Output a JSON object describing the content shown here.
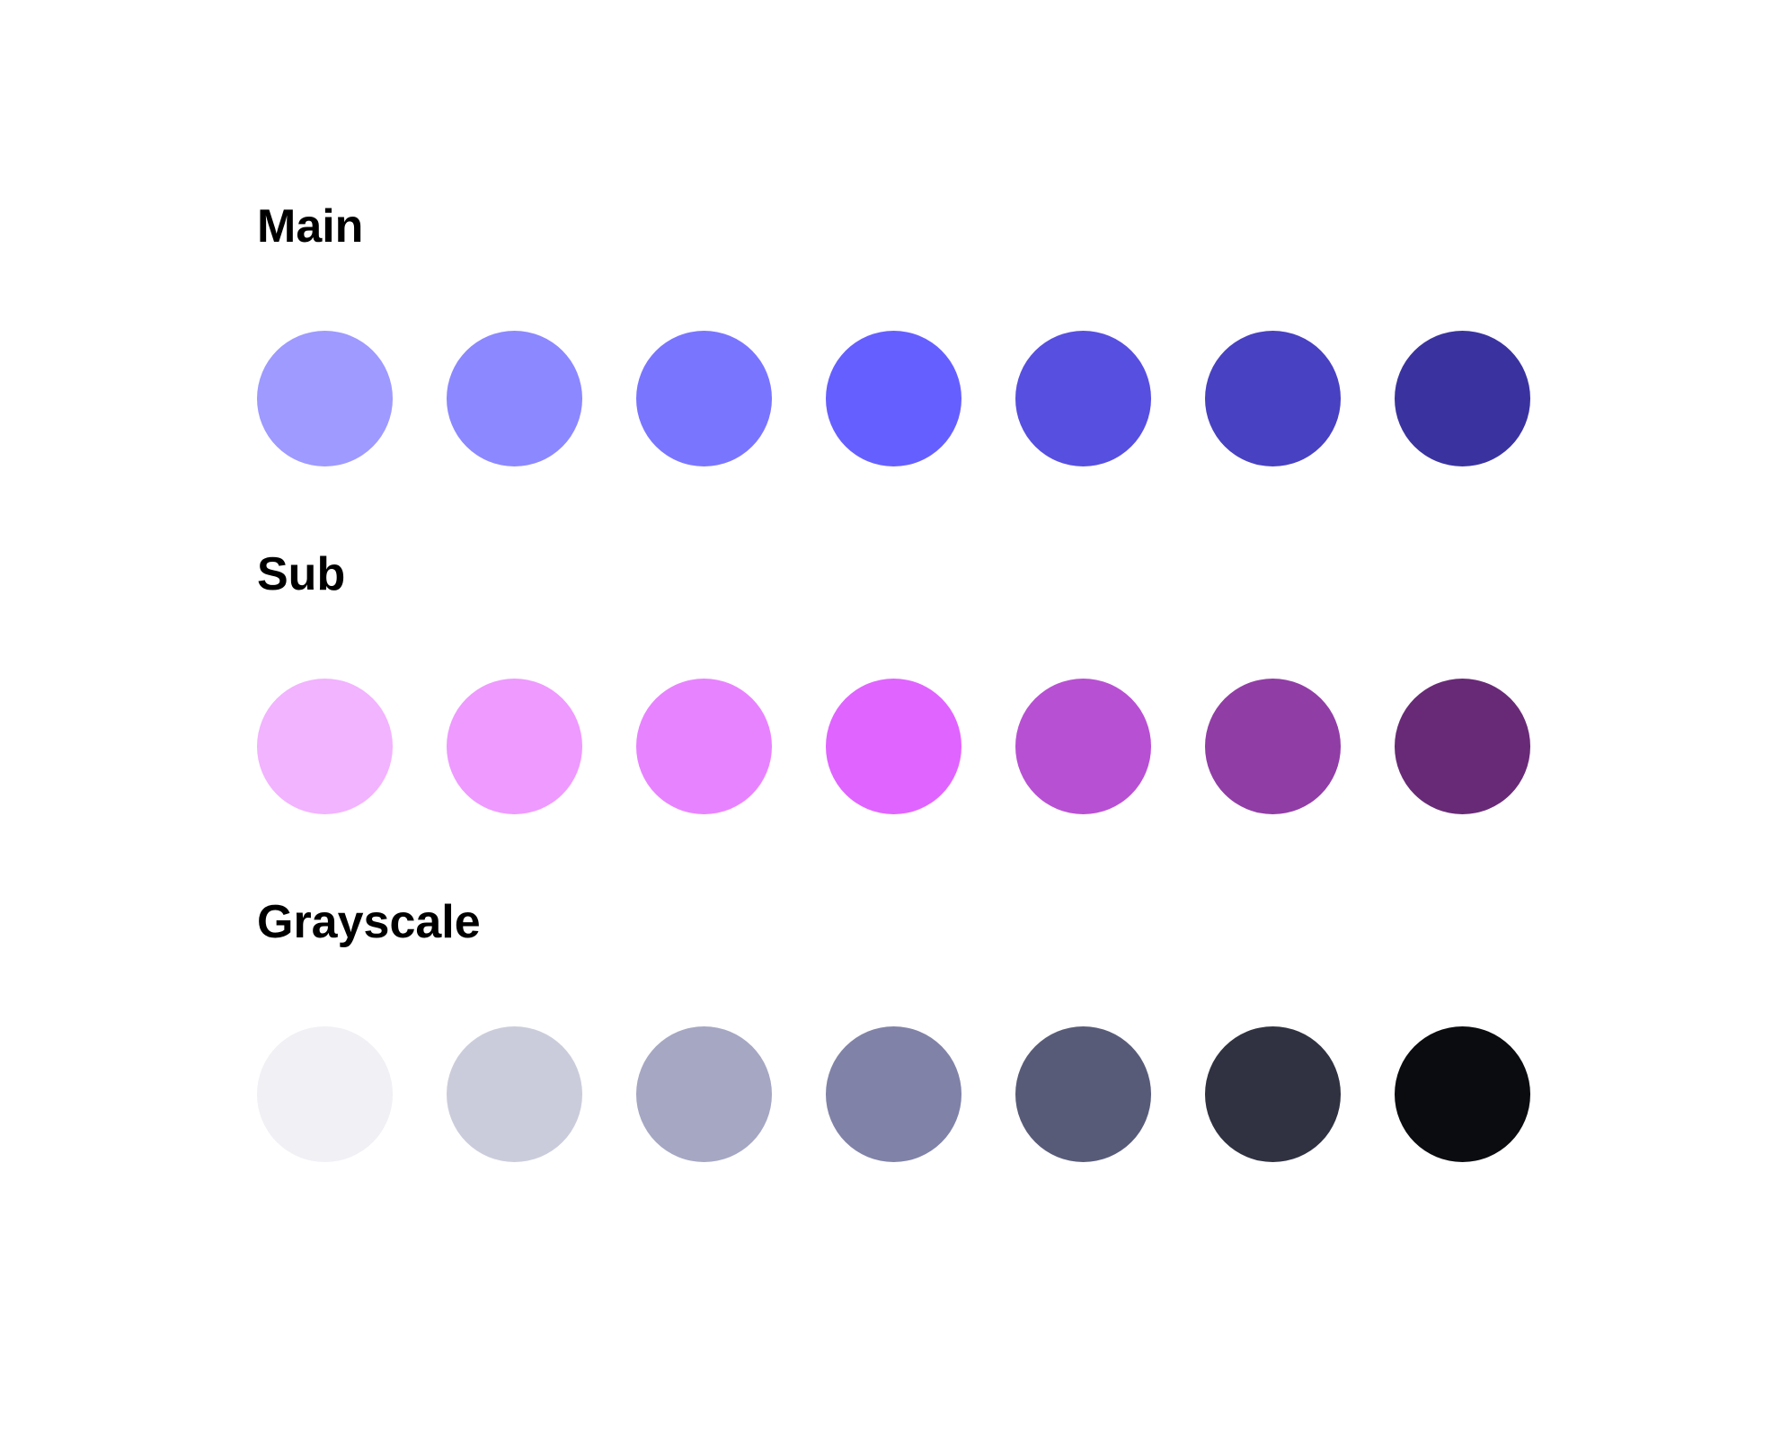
{
  "sections": [
    {
      "title": "Main",
      "swatches": [
        "#9E9AFF",
        "#8C88FF",
        "#7A75FF",
        "#665FFF",
        "#574FE0",
        "#4841C1",
        "#3A339F"
      ]
    },
    {
      "title": "Sub",
      "swatches": [
        "#F2B3FF",
        "#EE9AFF",
        "#E883FF",
        "#E064FF",
        "#B850D3",
        "#913DA6",
        "#682A76"
      ]
    },
    {
      "title": "Grayscale",
      "swatches": [
        "#F0F0F5",
        "#CBCCDB",
        "#A5A7C3",
        "#8082A7",
        "#585B78",
        "#303241",
        "#0B0C0F"
      ]
    }
  ]
}
